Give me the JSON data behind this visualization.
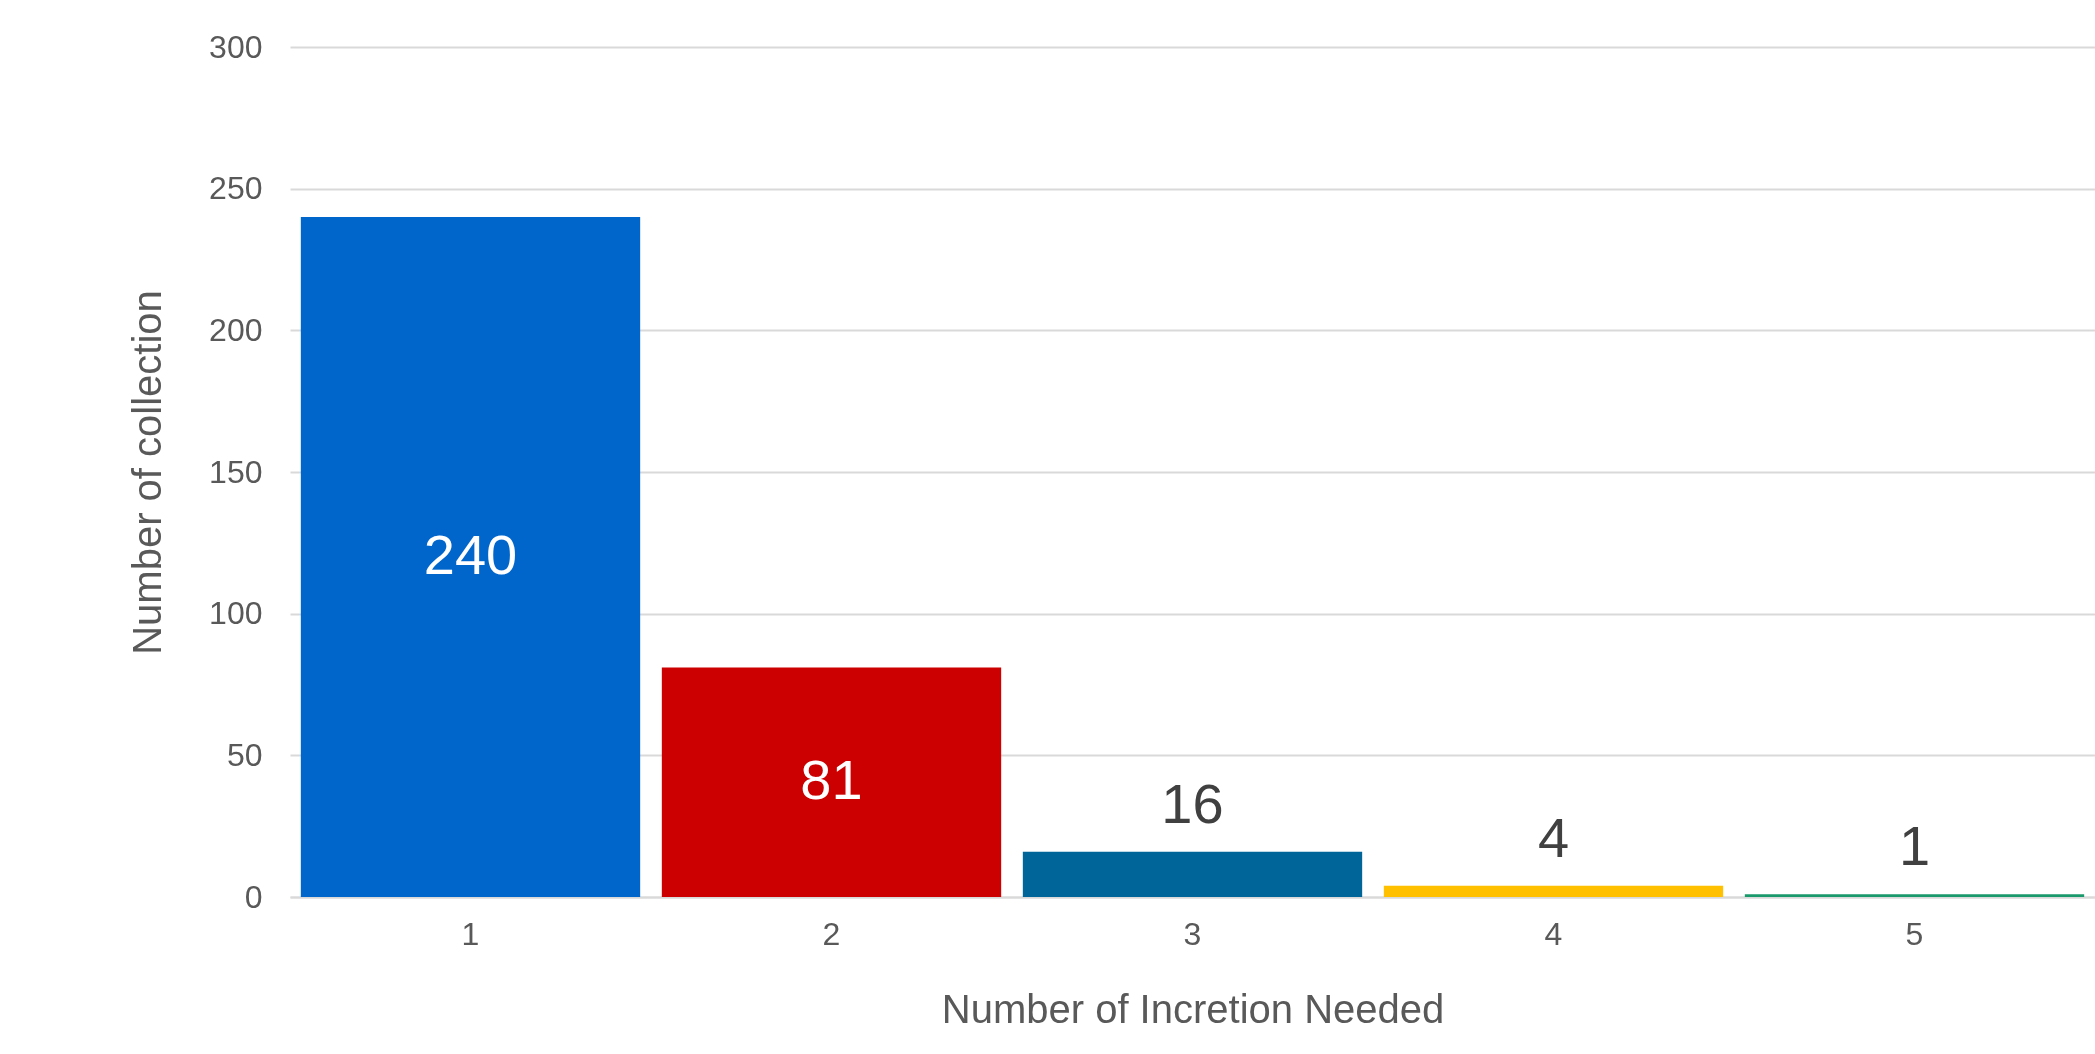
{
  "chart_data": {
    "type": "bar",
    "xlabel": "Number of Incretion Needed",
    "ylabel": "Number of collection",
    "categories": [
      "1",
      "2",
      "3",
      "4",
      "5"
    ],
    "values": [
      240,
      81,
      16,
      4,
      1
    ],
    "colors": [
      "#0066cc",
      "#cc0000",
      "#006699",
      "#ffc000",
      "#1a9a6c"
    ],
    "ylim": [
      0,
      300
    ],
    "yticks": [
      0,
      50,
      100,
      150,
      200,
      250,
      300
    ],
    "grid": "y",
    "data_labels": true
  }
}
